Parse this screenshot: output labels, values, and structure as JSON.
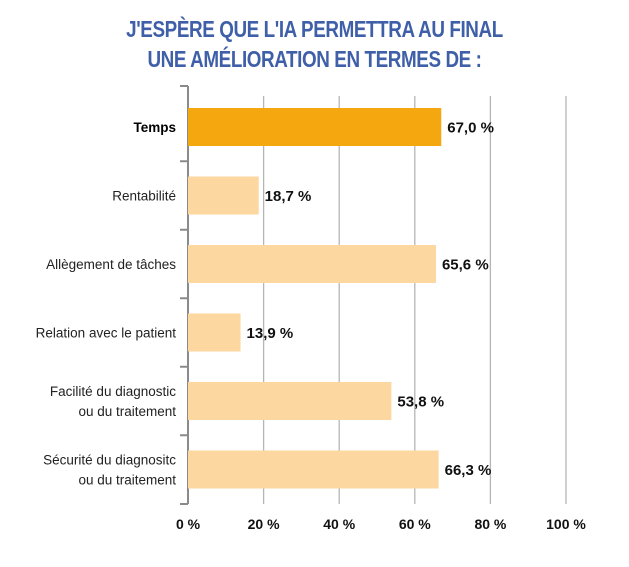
{
  "chart_data": {
    "type": "bar",
    "orientation": "horizontal",
    "title": [
      "J'ESPÈRE QUE L'IA PERMETTRA AU FINAL",
      "UNE AMÉLIORATION EN TERMES DE :"
    ],
    "categories": [
      [
        "Temps"
      ],
      [
        "Rentabilité"
      ],
      [
        "Allègement de tâches"
      ],
      [
        "Relation avec le patient"
      ],
      [
        "Facilité du diagnostic",
        "ou du traitement"
      ],
      [
        "Sécurité du diagnositc",
        "ou du traitement"
      ]
    ],
    "values": [
      67.0,
      18.7,
      65.6,
      13.9,
      53.8,
      66.3
    ],
    "value_labels": [
      "67,0 %",
      "18,7 %",
      "65,6 %",
      "13,9 %",
      "53,8 %",
      "66,3 %"
    ],
    "highlighted_index": 0,
    "xlim": [
      0,
      100
    ],
    "x_ticks": [
      0,
      20,
      40,
      60,
      80,
      100
    ],
    "x_tick_labels": [
      "0 %",
      "20 %",
      "40 %",
      "60 %",
      "80 %",
      "100 %"
    ],
    "grid": "vertical",
    "colors": {
      "highlight": "#f5a70f",
      "bar": "#fcd79f",
      "title": "#3f5fa8",
      "grid": "#b5b5b5"
    }
  }
}
